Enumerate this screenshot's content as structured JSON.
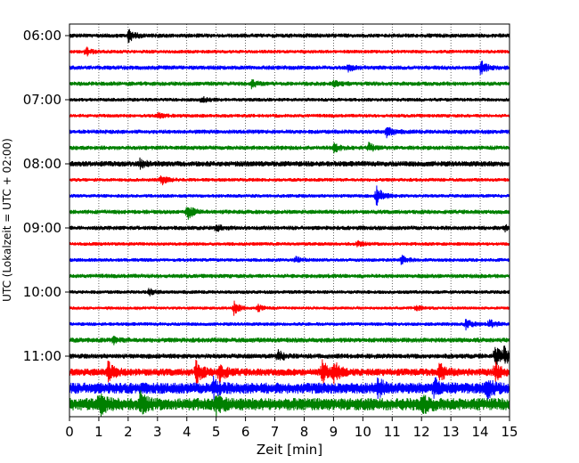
{
  "chart_data": {
    "type": "line",
    "title": "",
    "xlabel": "Zeit  [min]",
    "ylabel": "UTC (Lokalzeit = UTC + 02:00)",
    "xlim": [
      0,
      15
    ],
    "x_ticks": [
      0,
      1,
      2,
      3,
      4,
      5,
      6,
      7,
      8,
      9,
      10,
      11,
      12,
      13,
      14,
      15
    ],
    "y_tick_labels": [
      "06:00",
      "07:00",
      "08:00",
      "09:00",
      "10:00",
      "11:00"
    ],
    "grid": "vertical dotted lines at each minute",
    "trace_interval_min": 15,
    "colors": [
      "#000000",
      "#ff0000",
      "#0000ff",
      "#008000"
    ],
    "traces": [
      {
        "start": "06:00",
        "color": "#000000",
        "amp": 0.35,
        "events": [
          {
            "t": 2.0,
            "a": 1.1
          }
        ]
      },
      {
        "start": "06:15",
        "color": "#ff0000",
        "amp": 0.3,
        "events": [
          {
            "t": 0.55,
            "a": 0.7
          }
        ]
      },
      {
        "start": "06:30",
        "color": "#0000ff",
        "amp": 0.35,
        "events": [
          {
            "t": 14.0,
            "a": 1.2
          },
          {
            "t": 9.5,
            "a": 0.5
          }
        ]
      },
      {
        "start": "06:45",
        "color": "#008000",
        "amp": 0.35,
        "events": [
          {
            "t": 6.2,
            "a": 0.6
          },
          {
            "t": 9.0,
            "a": 0.5
          }
        ]
      },
      {
        "start": "07:00",
        "color": "#000000",
        "amp": 0.3,
        "events": [
          {
            "t": 4.5,
            "a": 0.5
          }
        ]
      },
      {
        "start": "07:15",
        "color": "#ff0000",
        "amp": 0.3,
        "events": [
          {
            "t": 3.0,
            "a": 0.4
          }
        ]
      },
      {
        "start": "07:30",
        "color": "#0000ff",
        "amp": 0.35,
        "events": [
          {
            "t": 10.8,
            "a": 0.9
          }
        ]
      },
      {
        "start": "07:45",
        "color": "#008000",
        "amp": 0.35,
        "events": [
          {
            "t": 9.0,
            "a": 0.7
          },
          {
            "t": 10.2,
            "a": 0.7
          }
        ]
      },
      {
        "start": "08:00",
        "color": "#000000",
        "amp": 0.45,
        "events": [
          {
            "t": 2.4,
            "a": 0.6
          }
        ]
      },
      {
        "start": "08:15",
        "color": "#ff0000",
        "amp": 0.3,
        "events": [
          {
            "t": 3.1,
            "a": 0.9
          }
        ]
      },
      {
        "start": "08:30",
        "color": "#0000ff",
        "amp": 0.3,
        "events": [
          {
            "t": 10.45,
            "a": 1.6
          }
        ]
      },
      {
        "start": "08:45",
        "color": "#008000",
        "amp": 0.35,
        "events": [
          {
            "t": 4.0,
            "a": 1.3
          }
        ]
      },
      {
        "start": "09:00",
        "color": "#000000",
        "amp": 0.35,
        "events": [
          {
            "t": 5.0,
            "a": 0.5
          },
          {
            "t": 14.8,
            "a": 0.5
          }
        ]
      },
      {
        "start": "09:15",
        "color": "#ff0000",
        "amp": 0.3,
        "events": [
          {
            "t": 9.8,
            "a": 0.4
          }
        ]
      },
      {
        "start": "09:30",
        "color": "#0000ff",
        "amp": 0.3,
        "events": [
          {
            "t": 11.3,
            "a": 0.7
          },
          {
            "t": 7.7,
            "a": 0.4
          }
        ]
      },
      {
        "start": "09:45",
        "color": "#008000",
        "amp": 0.35,
        "events": []
      },
      {
        "start": "10:00",
        "color": "#000000",
        "amp": 0.3,
        "events": [
          {
            "t": 2.7,
            "a": 0.5
          }
        ]
      },
      {
        "start": "10:15",
        "color": "#ff0000",
        "amp": 0.25,
        "events": [
          {
            "t": 5.6,
            "a": 1.1
          },
          {
            "t": 6.4,
            "a": 0.6
          },
          {
            "t": 11.8,
            "a": 0.5
          }
        ]
      },
      {
        "start": "10:30",
        "color": "#0000ff",
        "amp": 0.3,
        "events": [
          {
            "t": 13.5,
            "a": 0.8
          },
          {
            "t": 14.3,
            "a": 0.8
          }
        ]
      },
      {
        "start": "10:45",
        "color": "#008000",
        "amp": 0.4,
        "events": [
          {
            "t": 1.5,
            "a": 0.5
          }
        ]
      },
      {
        "start": "11:00",
        "color": "#000000",
        "amp": 0.4,
        "events": [
          {
            "t": 7.1,
            "a": 0.9
          },
          {
            "t": 14.5,
            "a": 1.8
          },
          {
            "t": 14.8,
            "a": 1.5
          }
        ]
      },
      {
        "start": "11:15",
        "color": "#ff0000",
        "amp": 0.6,
        "events": [
          {
            "t": 1.3,
            "a": 1.6
          },
          {
            "t": 4.3,
            "a": 1.8
          },
          {
            "t": 5.1,
            "a": 1.6
          },
          {
            "t": 8.6,
            "a": 1.8
          },
          {
            "t": 9.0,
            "a": 1.6
          },
          {
            "t": 12.6,
            "a": 1.5
          },
          {
            "t": 14.5,
            "a": 1.6
          }
        ]
      },
      {
        "start": "11:30",
        "color": "#0000ff",
        "amp": 0.9,
        "events": [
          {
            "t": 4.9,
            "a": 1.4
          },
          {
            "t": 10.5,
            "a": 1.4
          },
          {
            "t": 12.4,
            "a": 1.5
          },
          {
            "t": 14.2,
            "a": 1.5
          }
        ]
      },
      {
        "start": "11:45",
        "color": "#008000",
        "amp": 1.0,
        "events": [
          {
            "t": 1.0,
            "a": 1.6
          },
          {
            "t": 2.4,
            "a": 1.5
          },
          {
            "t": 5.0,
            "a": 1.5
          },
          {
            "t": 12.0,
            "a": 1.4
          }
        ]
      }
    ]
  }
}
